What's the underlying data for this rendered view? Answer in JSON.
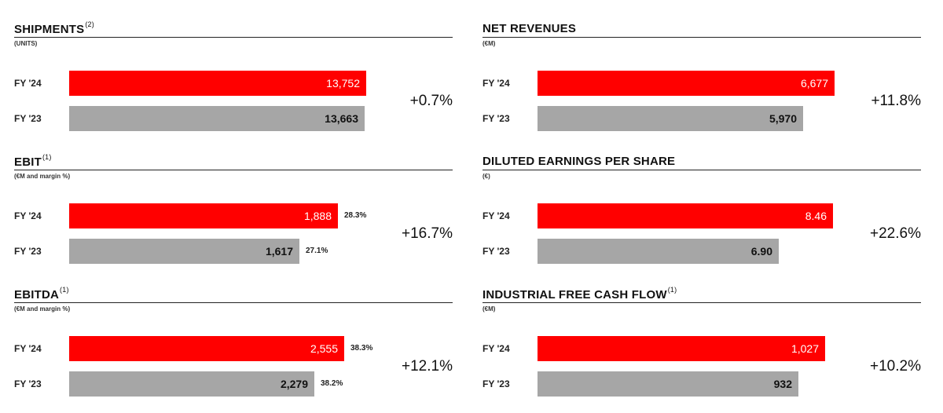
{
  "colors": {
    "current": "#ff0000",
    "previous": "#a6a6a6"
  },
  "chart_data": [
    {
      "type": "bar",
      "title": "SHIPMENTS",
      "title_note": "(2)",
      "unit": "(UNITS)",
      "categories": [
        "FY '24",
        "FY '23"
      ],
      "values": [
        13752,
        13663
      ],
      "value_labels": [
        "13,752",
        "13,663"
      ],
      "margin_labels": [
        "",
        ""
      ],
      "change": "+0.7%"
    },
    {
      "type": "bar",
      "title": "NET REVENUES",
      "title_note": "",
      "unit": "(€M)",
      "categories": [
        "FY '24",
        "FY '23"
      ],
      "values": [
        6677,
        5970
      ],
      "value_labels": [
        "6,677",
        "5,970"
      ],
      "margin_labels": [
        "",
        ""
      ],
      "change": "+11.8%"
    },
    {
      "type": "bar",
      "title": "EBIT",
      "title_note": "(1)",
      "unit": "(€M and margin %)",
      "categories": [
        "FY '24",
        "FY '23"
      ],
      "values": [
        1888,
        1617
      ],
      "value_labels": [
        "1,888",
        "1,617"
      ],
      "margin_labels": [
        "28.3%",
        "27.1%"
      ],
      "change": "+16.7%"
    },
    {
      "type": "bar",
      "title": "DILUTED EARNINGS PER SHARE",
      "title_note": "",
      "unit": "(€)",
      "categories": [
        "FY '24",
        "FY '23"
      ],
      "values": [
        8.46,
        6.9
      ],
      "value_labels": [
        "8.46",
        "6.90"
      ],
      "margin_labels": [
        "",
        ""
      ],
      "change": "+22.6%"
    },
    {
      "type": "bar",
      "title": "EBITDA",
      "title_note": "(1)",
      "unit": "(€M and margin %)",
      "categories": [
        "FY '24",
        "FY '23"
      ],
      "values": [
        2555,
        2279
      ],
      "value_labels": [
        "2,555",
        "2,279"
      ],
      "margin_labels": [
        "38.3%",
        "38.2%"
      ],
      "change": "+12.1%"
    },
    {
      "type": "bar",
      "title": "INDUSTRIAL FREE CASH FLOW",
      "title_note": "(1)",
      "unit": "(€M)",
      "categories": [
        "FY '24",
        "FY '23"
      ],
      "values": [
        1027,
        932
      ],
      "value_labels": [
        "1,027",
        "932"
      ],
      "margin_labels": [
        "",
        ""
      ],
      "change": "+10.2%"
    }
  ]
}
